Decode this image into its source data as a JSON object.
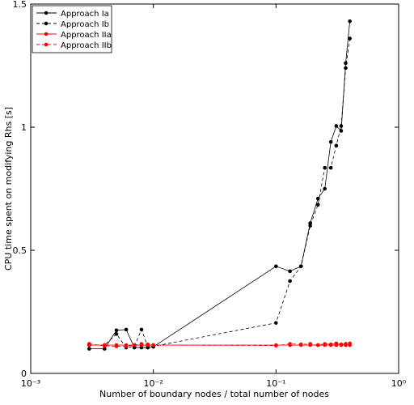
{
  "chart_data": {
    "type": "line",
    "xlabel": "Number of boundary nodes / total number of nodes",
    "ylabel": "CPU time spent on modifying Rhs [s]",
    "xscale": "log",
    "xlim": [
      0.001,
      1
    ],
    "ylim": [
      0,
      1.5
    ],
    "xticks": [
      {
        "value": 0.001,
        "label": "10⁻³"
      },
      {
        "value": 0.01,
        "label": "10⁻²"
      },
      {
        "value": 0.1,
        "label": "10⁻¹"
      },
      {
        "value": 1,
        "label": "10⁰"
      }
    ],
    "yticks": [
      0,
      0.5,
      1,
      1.5
    ],
    "legend": "upper left",
    "x": [
      0.003,
      0.004,
      0.005,
      0.006,
      0.007,
      0.008,
      0.009,
      0.01,
      0.1,
      0.13,
      0.16,
      0.19,
      0.22,
      0.25,
      0.28,
      0.31,
      0.34,
      0.37,
      0.4
    ],
    "series": [
      {
        "name": "Approach Ia",
        "color": "#000000",
        "dash": "solid",
        "values": [
          0.1,
          0.1,
          0.175,
          0.178,
          0.105,
          0.105,
          0.105,
          0.108,
          0.435,
          0.415,
          0.435,
          0.61,
          0.71,
          0.75,
          0.94,
          1.005,
          0.985,
          1.26,
          1.43
        ]
      },
      {
        "name": "Approach Ib",
        "color": "#000000",
        "dash": "dashed",
        "values": [
          0.115,
          0.115,
          0.16,
          0.105,
          0.11,
          0.178,
          0.11,
          0.11,
          0.205,
          0.375,
          0.435,
          0.6,
          0.685,
          0.835,
          0.835,
          0.925,
          1.005,
          1.24,
          1.36
        ]
      },
      {
        "name": "Approach IIa",
        "color": "#ff0000",
        "dash": "solid",
        "values": [
          0.115,
          0.115,
          0.115,
          0.115,
          0.115,
          0.115,
          0.115,
          0.115,
          0.115,
          0.115,
          0.115,
          0.115,
          0.115,
          0.115,
          0.115,
          0.115,
          0.115,
          0.115,
          0.115
        ]
      },
      {
        "name": "Approach IIb",
        "color": "#ff0000",
        "dash": "dashed",
        "values": [
          0.12,
          0.112,
          0.11,
          0.11,
          0.115,
          0.12,
          0.118,
          0.115,
          0.113,
          0.12,
          0.118,
          0.12,
          0.115,
          0.12,
          0.118,
          0.122,
          0.118,
          0.12,
          0.122
        ]
      }
    ]
  }
}
